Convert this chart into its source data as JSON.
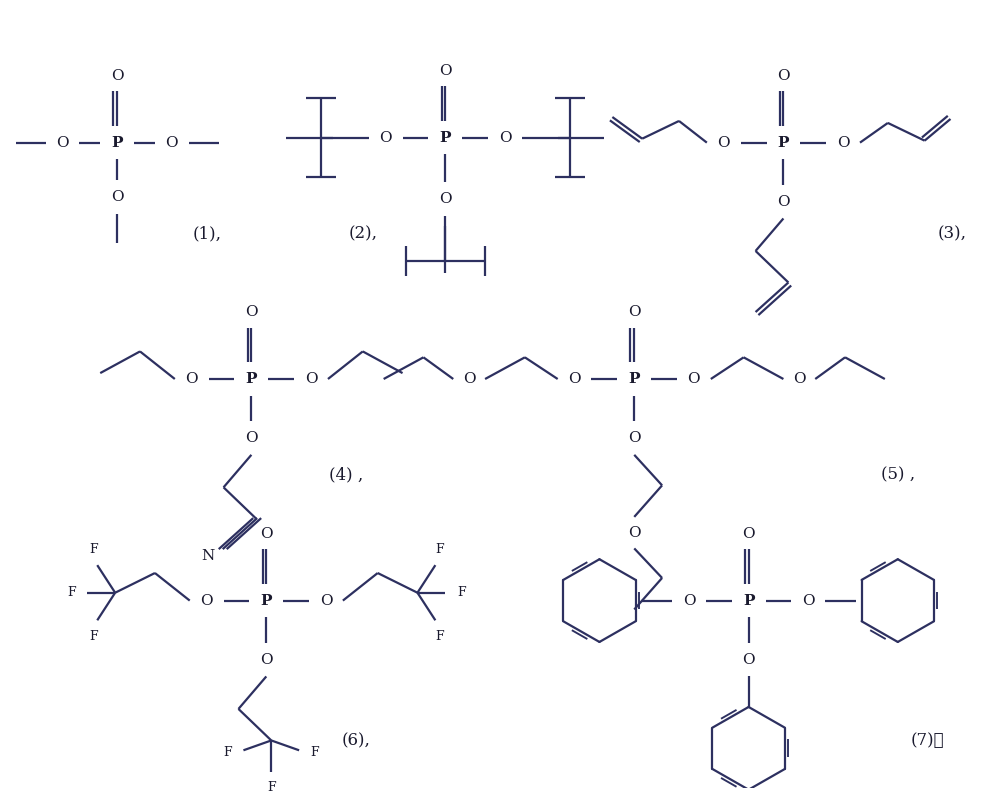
{
  "background_color": "#ffffff",
  "line_color": "#2d3060",
  "text_color": "#1a1a2e",
  "fig_width": 10.0,
  "fig_height": 7.97,
  "lw": 1.6,
  "font_size": 11,
  "labels": {
    "1": "(1),",
    "2": "(2),",
    "3": "(3),",
    "4": "(4) ,",
    "5": "(5) ,",
    "6": "(6),",
    "7": "(7)。"
  }
}
